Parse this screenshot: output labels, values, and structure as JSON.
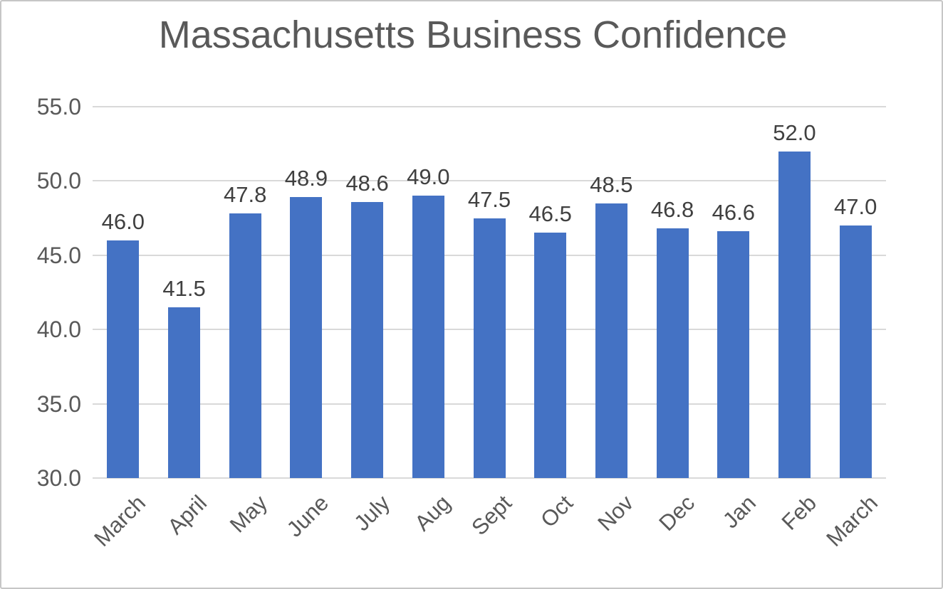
{
  "chart_data": {
    "type": "bar",
    "title": "Massachusetts Business Confidence",
    "categories": [
      "March",
      "April",
      "May",
      "June",
      "July",
      "Aug",
      "Sept",
      "Oct",
      "Nov",
      "Dec",
      "Jan",
      "Feb",
      "March"
    ],
    "values": [
      46.0,
      41.5,
      47.8,
      48.9,
      48.6,
      49.0,
      47.5,
      46.5,
      48.5,
      46.8,
      46.6,
      52.0,
      47.0
    ],
    "data_labels": [
      "46.0",
      "41.5",
      "47.8",
      "48.9",
      "48.6",
      "49.0",
      "47.5",
      "46.5",
      "48.5",
      "46.8",
      "46.6",
      "52.0",
      "47.0"
    ],
    "xlabel": "",
    "ylabel": "",
    "ylim": [
      30.0,
      55.0
    ],
    "ytick_step": 5.0,
    "yticks": [
      "55.0",
      "50.0",
      "45.0",
      "40.0",
      "35.0",
      "30.0"
    ],
    "grid": true,
    "legend": false,
    "colors": {
      "bar": "#4472C4",
      "title_text": "#595959",
      "axis_text": "#595959",
      "data_label_text": "#404040",
      "gridline": "#D9D9D9",
      "frame_border": "#C6C6C6",
      "background": "#FFFFFF"
    }
  }
}
